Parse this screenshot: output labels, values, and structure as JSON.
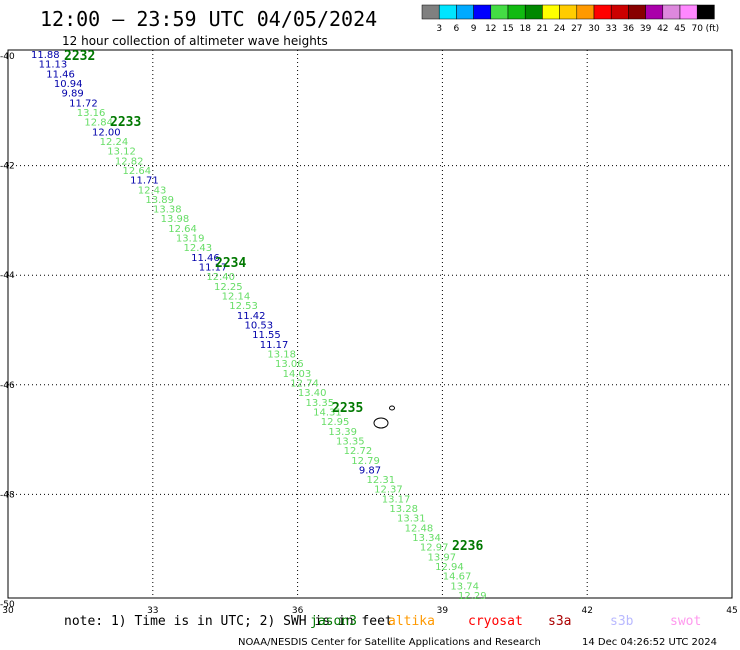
{
  "title": "12:00 – 23:59 UTC 04/05/2024",
  "subtitle": "12 hour collection of altimeter wave heights",
  "colorbar": {
    "colors": [
      "#808080",
      "#00e5ff",
      "#00aaff",
      "#0000ff",
      "#44dd44",
      "#11bb11",
      "#008800",
      "#ffff00",
      "#ffcc00",
      "#ff9900",
      "#ff0000",
      "#cc0000",
      "#880000",
      "#aa00aa",
      "#dd88dd",
      "#ff88ff",
      "#000000"
    ],
    "labels": [
      "3",
      "6",
      "9",
      "12",
      "15",
      "18",
      "21",
      "24",
      "27",
      "30",
      "33",
      "36",
      "39",
      "42",
      "45",
      "70"
    ],
    "unit": "(ft)"
  },
  "axes": {
    "x_ticks": [
      "30",
      "33",
      "36",
      "39",
      "42",
      "45"
    ],
    "y_ticks": [
      "-40",
      "-42",
      "-44",
      "-46",
      "-48",
      "-50"
    ],
    "x_range": [
      30,
      45
    ],
    "y_range": [
      -50,
      -40
    ]
  },
  "hour_labels": [
    "2232",
    "2233",
    "2234",
    "2235",
    "2236"
  ],
  "observations": [
    {
      "v": "11.88",
      "c": "#0000aa"
    },
    {
      "v": "11.13",
      "c": "#0000aa"
    },
    {
      "v": "11.46",
      "c": "#0000aa"
    },
    {
      "v": "10.94",
      "c": "#0000aa"
    },
    {
      "v": "9.89",
      "c": "#0000aa"
    },
    {
      "v": "11.72",
      "c": "#0000aa"
    },
    {
      "v": "13.16",
      "c": "#66dd66"
    },
    {
      "v": "12.84",
      "c": "#66dd66"
    },
    {
      "v": "12.00",
      "c": "#0000aa"
    },
    {
      "v": "12.24",
      "c": "#66dd66"
    },
    {
      "v": "13.12",
      "c": "#66dd66"
    },
    {
      "v": "12.82",
      "c": "#66dd66"
    },
    {
      "v": "12.64",
      "c": "#66dd66"
    },
    {
      "v": "11.71",
      "c": "#0000aa"
    },
    {
      "v": "12.43",
      "c": "#66dd66"
    },
    {
      "v": "13.89",
      "c": "#66dd66"
    },
    {
      "v": "13.38",
      "c": "#66dd66"
    },
    {
      "v": "13.98",
      "c": "#66dd66"
    },
    {
      "v": "12.64",
      "c": "#66dd66"
    },
    {
      "v": "13.19",
      "c": "#66dd66"
    },
    {
      "v": "12.43",
      "c": "#66dd66"
    },
    {
      "v": "11.46",
      "c": "#0000aa"
    },
    {
      "v": "11.17",
      "c": "#0000aa"
    },
    {
      "v": "12.40",
      "c": "#66dd66"
    },
    {
      "v": "12.25",
      "c": "#66dd66"
    },
    {
      "v": "12.14",
      "c": "#66dd66"
    },
    {
      "v": "12.53",
      "c": "#66dd66"
    },
    {
      "v": "11.42",
      "c": "#0000aa"
    },
    {
      "v": "10.53",
      "c": "#0000aa"
    },
    {
      "v": "11.55",
      "c": "#0000aa"
    },
    {
      "v": "11.17",
      "c": "#0000aa"
    },
    {
      "v": "13.18",
      "c": "#66dd66"
    },
    {
      "v": "13.06",
      "c": "#66dd66"
    },
    {
      "v": "14.03",
      "c": "#66dd66"
    },
    {
      "v": "12.74",
      "c": "#66dd66"
    },
    {
      "v": "13.40",
      "c": "#66dd66"
    },
    {
      "v": "13.35",
      "c": "#66dd66"
    },
    {
      "v": "14.31",
      "c": "#66dd66"
    },
    {
      "v": "12.95",
      "c": "#66dd66"
    },
    {
      "v": "13.39",
      "c": "#66dd66"
    },
    {
      "v": "13.35",
      "c": "#66dd66"
    },
    {
      "v": "12.72",
      "c": "#66dd66"
    },
    {
      "v": "12.79",
      "c": "#66dd66"
    },
    {
      "v": "9.87",
      "c": "#0000aa"
    },
    {
      "v": "12.31",
      "c": "#66dd66"
    },
    {
      "v": "12.37",
      "c": "#66dd66"
    },
    {
      "v": "13.17",
      "c": "#66dd66"
    },
    {
      "v": "13.28",
      "c": "#66dd66"
    },
    {
      "v": "13.31",
      "c": "#66dd66"
    },
    {
      "v": "12.48",
      "c": "#66dd66"
    },
    {
      "v": "13.34",
      "c": "#66dd66"
    },
    {
      "v": "12.97",
      "c": "#66dd66"
    },
    {
      "v": "13.97",
      "c": "#66dd66"
    },
    {
      "v": "12.94",
      "c": "#66dd66"
    },
    {
      "v": "14.67",
      "c": "#66dd66"
    },
    {
      "v": "13.74",
      "c": "#66dd66"
    },
    {
      "v": "12.29",
      "c": "#66dd66"
    }
  ],
  "note": {
    "prefix": "note: 1) Time is in UTC; 2) SWH is in feet",
    "satellites": [
      {
        "name": "jason3",
        "color": "#007800"
      },
      {
        "name": "altika",
        "color": "#ff9900"
      },
      {
        "name": "cryosat",
        "color": "#ff0000"
      },
      {
        "name": "s3a",
        "color": "#aa0000"
      },
      {
        "name": "s3b",
        "color": "#b9b9ff"
      },
      {
        "name": "swot",
        "color": "#ff99ee"
      }
    ]
  },
  "credit": "NOAA/NESDIS Center for Satellite Applications and Research",
  "timestamp": "14 Dec 04:26:52 UTC 2024"
}
